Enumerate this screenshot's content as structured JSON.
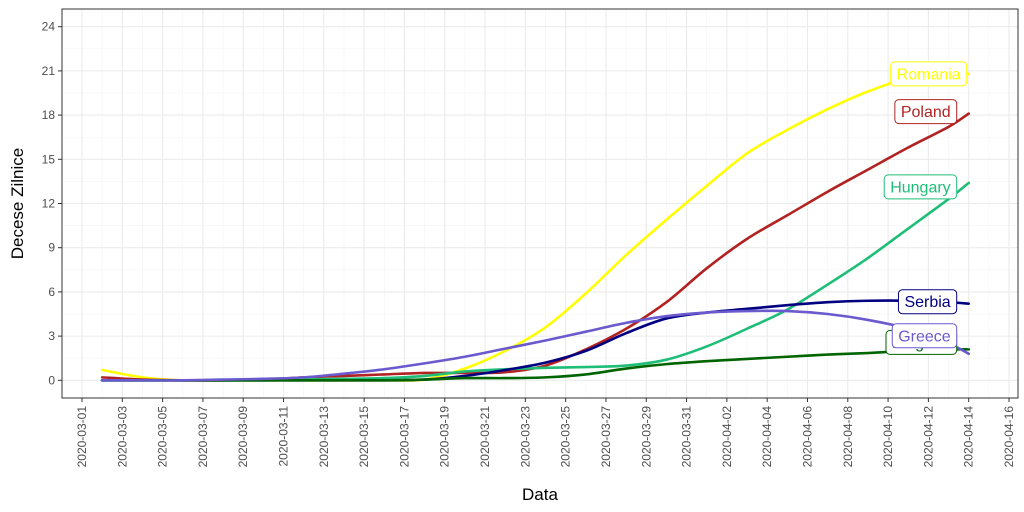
{
  "chart_data": {
    "type": "line",
    "xlabel": "Data",
    "ylabel": "Decese Zilnice",
    "xlim": [
      "2020-03-01",
      "2020-04-16"
    ],
    "ylim": [
      -1.2,
      25.2
    ],
    "grid": true,
    "legend": "inline-labels-at-line-ends",
    "x_ticks": [
      "2020-03-01",
      "2020-03-03",
      "2020-03-05",
      "2020-03-07",
      "2020-03-09",
      "2020-03-11",
      "2020-03-13",
      "2020-03-15",
      "2020-03-17",
      "2020-03-19",
      "2020-03-21",
      "2020-03-23",
      "2020-03-25",
      "2020-03-27",
      "2020-03-29",
      "2020-03-31",
      "2020-04-02",
      "2020-04-04",
      "2020-04-06",
      "2020-04-08",
      "2020-04-10",
      "2020-04-12",
      "2020-04-14",
      "2020-04-16"
    ],
    "y_ticks": [
      0,
      3,
      6,
      9,
      12,
      15,
      18,
      21,
      24
    ],
    "y_tick_labels": [
      "0",
      "3",
      "6",
      "9",
      "12",
      "15",
      "18",
      "21",
      "24"
    ],
    "series": [
      {
        "name": "Romania",
        "color": "#ffff00",
        "x": [
          "2020-03-02",
          "2020-03-04",
          "2020-03-06",
          "2020-03-08",
          "2020-03-10",
          "2020-03-12",
          "2020-03-14",
          "2020-03-16",
          "2020-03-18",
          "2020-03-20",
          "2020-03-22",
          "2020-03-24",
          "2020-03-26",
          "2020-03-28",
          "2020-03-30",
          "2020-04-01",
          "2020-04-03",
          "2020-04-05",
          "2020-04-07",
          "2020-04-09",
          "2020-04-11",
          "2020-04-13",
          "2020-04-14"
        ],
        "values": [
          0.7,
          0.2,
          0,
          0,
          0,
          0,
          0,
          0,
          0.05,
          0.8,
          2.0,
          3.6,
          5.9,
          8.5,
          10.9,
          13.2,
          15.4,
          17.0,
          18.4,
          19.6,
          20.5,
          20.8,
          20.8
        ]
      },
      {
        "name": "Poland",
        "color": "#b22222",
        "x": [
          "2020-03-02",
          "2020-03-04",
          "2020-03-06",
          "2020-03-08",
          "2020-03-10",
          "2020-03-12",
          "2020-03-14",
          "2020-03-16",
          "2020-03-18",
          "2020-03-20",
          "2020-03-22",
          "2020-03-24",
          "2020-03-26",
          "2020-03-28",
          "2020-03-30",
          "2020-04-01",
          "2020-04-03",
          "2020-04-05",
          "2020-04-07",
          "2020-04-09",
          "2020-04-11",
          "2020-04-13",
          "2020-04-14"
        ],
        "values": [
          0.2,
          0.05,
          0,
          0,
          0.05,
          0.2,
          0.3,
          0.4,
          0.5,
          0.5,
          0.55,
          1.0,
          2.1,
          3.5,
          5.3,
          7.6,
          9.6,
          11.2,
          12.8,
          14.3,
          15.8,
          17.2,
          18.1
        ]
      },
      {
        "name": "Hungary",
        "color": "#1ebe78",
        "x": [
          "2020-03-02",
          "2020-03-04",
          "2020-03-06",
          "2020-03-08",
          "2020-03-10",
          "2020-03-12",
          "2020-03-14",
          "2020-03-16",
          "2020-03-18",
          "2020-03-20",
          "2020-03-22",
          "2020-03-24",
          "2020-03-26",
          "2020-03-28",
          "2020-03-30",
          "2020-04-01",
          "2020-04-03",
          "2020-04-05",
          "2020-04-07",
          "2020-04-09",
          "2020-04-11",
          "2020-04-13",
          "2020-04-14"
        ],
        "values": [
          0,
          0,
          0,
          0,
          0,
          0.05,
          0.1,
          0.15,
          0.3,
          0.6,
          0.75,
          0.85,
          0.9,
          1.0,
          1.4,
          2.3,
          3.5,
          4.8,
          6.5,
          8.3,
          10.3,
          12.3,
          13.4
        ]
      },
      {
        "name": "Serbia",
        "color": "#000080",
        "x": [
          "2020-03-02",
          "2020-03-04",
          "2020-03-06",
          "2020-03-08",
          "2020-03-10",
          "2020-03-12",
          "2020-03-14",
          "2020-03-16",
          "2020-03-18",
          "2020-03-20",
          "2020-03-22",
          "2020-03-24",
          "2020-03-26",
          "2020-03-28",
          "2020-03-30",
          "2020-04-01",
          "2020-04-03",
          "2020-04-05",
          "2020-04-07",
          "2020-04-09",
          "2020-04-11",
          "2020-04-13",
          "2020-04-14"
        ],
        "values": [
          0,
          0,
          0,
          0,
          0,
          0,
          0,
          0,
          0.05,
          0.3,
          0.7,
          1.2,
          2.0,
          3.2,
          4.2,
          4.6,
          4.85,
          5.1,
          5.3,
          5.4,
          5.4,
          5.3,
          5.2
        ]
      },
      {
        "name": "Bulgaria",
        "color": "#006400",
        "x": [
          "2020-03-02",
          "2020-03-04",
          "2020-03-06",
          "2020-03-08",
          "2020-03-10",
          "2020-03-12",
          "2020-03-14",
          "2020-03-16",
          "2020-03-18",
          "2020-03-20",
          "2020-03-22",
          "2020-03-24",
          "2020-03-26",
          "2020-03-28",
          "2020-03-30",
          "2020-04-01",
          "2020-04-03",
          "2020-04-05",
          "2020-04-07",
          "2020-04-09",
          "2020-04-11",
          "2020-04-13",
          "2020-04-14"
        ],
        "values": [
          0,
          0,
          0,
          0,
          0,
          0,
          0,
          0,
          0.05,
          0.15,
          0.15,
          0.2,
          0.4,
          0.8,
          1.1,
          1.3,
          1.45,
          1.6,
          1.75,
          1.85,
          2.0,
          2.1,
          2.1
        ]
      },
      {
        "name": "Greece",
        "color": "#6a5acd",
        "x": [
          "2020-03-02",
          "2020-03-04",
          "2020-03-06",
          "2020-03-08",
          "2020-03-10",
          "2020-03-12",
          "2020-03-14",
          "2020-03-16",
          "2020-03-18",
          "2020-03-20",
          "2020-03-22",
          "2020-03-24",
          "2020-03-26",
          "2020-03-28",
          "2020-03-30",
          "2020-04-01",
          "2020-04-03",
          "2020-04-05",
          "2020-04-07",
          "2020-04-09",
          "2020-04-11",
          "2020-04-13",
          "2020-04-14"
        ],
        "values": [
          0,
          0,
          0,
          0.05,
          0.1,
          0.2,
          0.45,
          0.75,
          1.15,
          1.6,
          2.15,
          2.7,
          3.3,
          3.9,
          4.35,
          4.6,
          4.7,
          4.7,
          4.5,
          4.1,
          3.5,
          2.5,
          1.8
        ]
      }
    ]
  }
}
